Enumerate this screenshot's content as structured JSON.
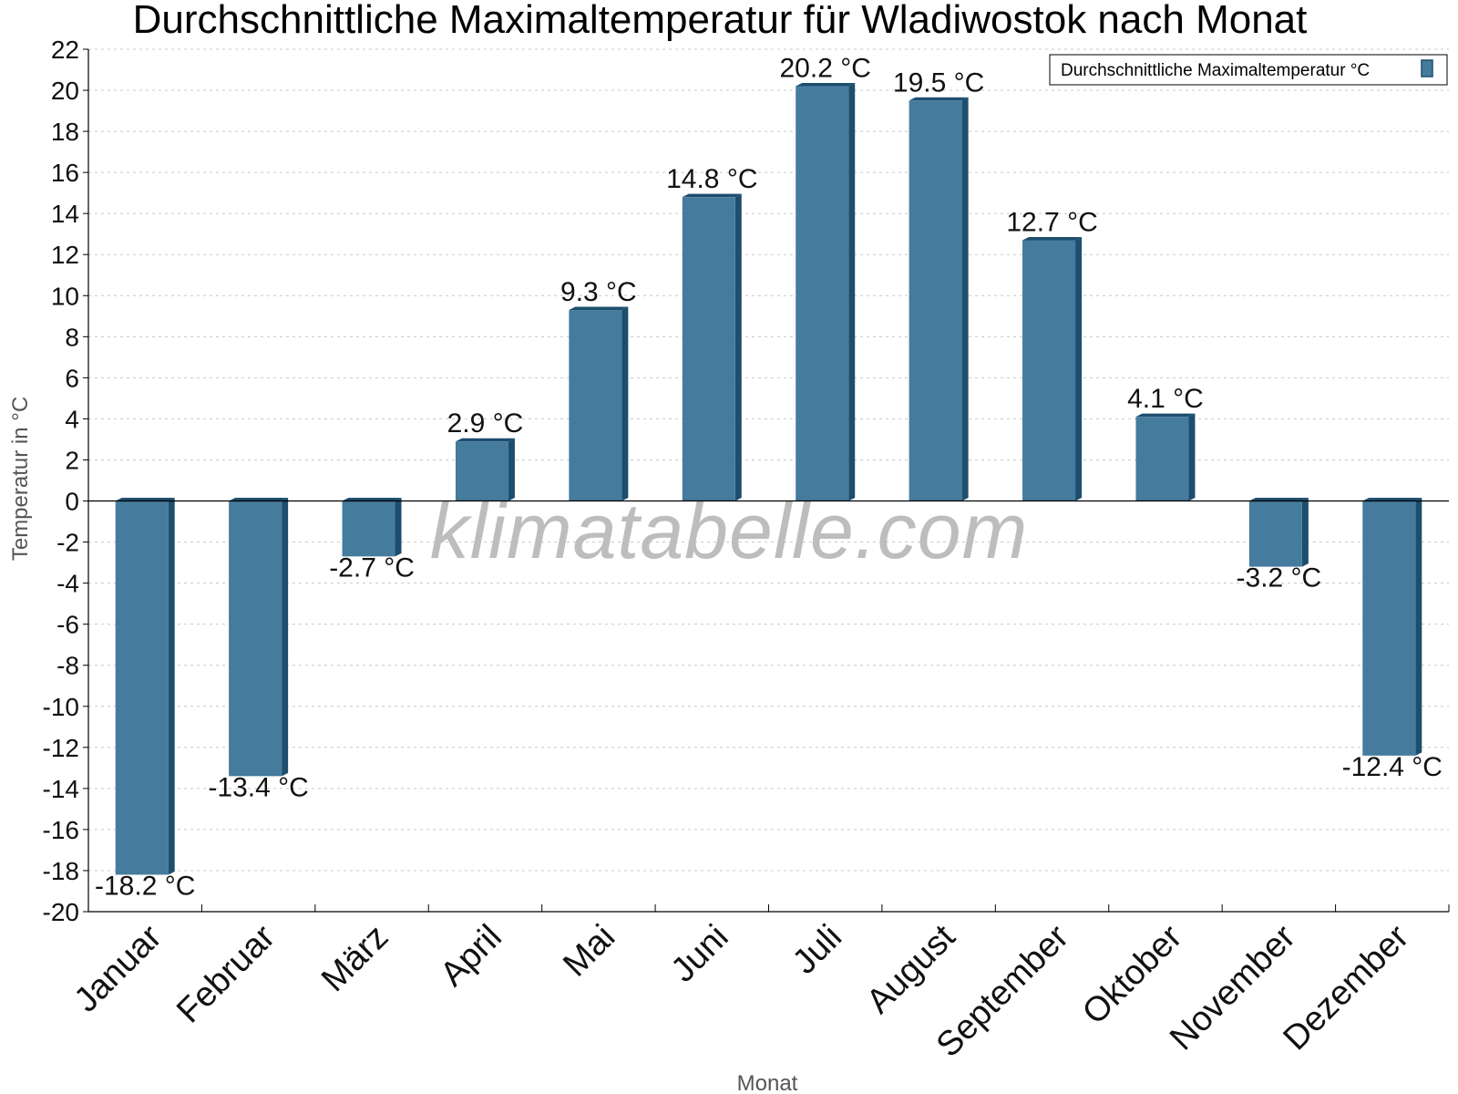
{
  "chart_data": {
    "type": "bar",
    "title": "Durchschnittliche Maximaltemperatur für Wladiwostok nach Monat",
    "xlabel": "Monat",
    "ylabel": "Temperatur in °C",
    "ylim": [
      -20,
      22
    ],
    "ytick_step": 2,
    "grid": true,
    "legend_position": "top-right",
    "categories": [
      "Januar",
      "Februar",
      "März",
      "April",
      "Mai",
      "Juni",
      "Juli",
      "August",
      "September",
      "Oktober",
      "November",
      "Dezember"
    ],
    "series": [
      {
        "name": "Durchschnittliche Maximaltemperatur °C",
        "values": [
          -18.2,
          -13.4,
          -2.7,
          2.9,
          9.3,
          14.8,
          20.2,
          19.5,
          12.7,
          4.1,
          -3.2,
          -12.4
        ],
        "labels": [
          "-18.2 °C",
          "-13.4 °C",
          "-2.7 °C",
          "2.9 °C",
          "9.3 °C",
          "14.8 °C",
          "20.2 °C",
          "19.5 °C",
          "12.7 °C",
          "4.1 °C",
          "-3.2 °C",
          "-12.4 °C"
        ],
        "color": "#457b9d",
        "side_color": "#1d4e6e"
      }
    ]
  },
  "watermark": "klimatabelle.com"
}
